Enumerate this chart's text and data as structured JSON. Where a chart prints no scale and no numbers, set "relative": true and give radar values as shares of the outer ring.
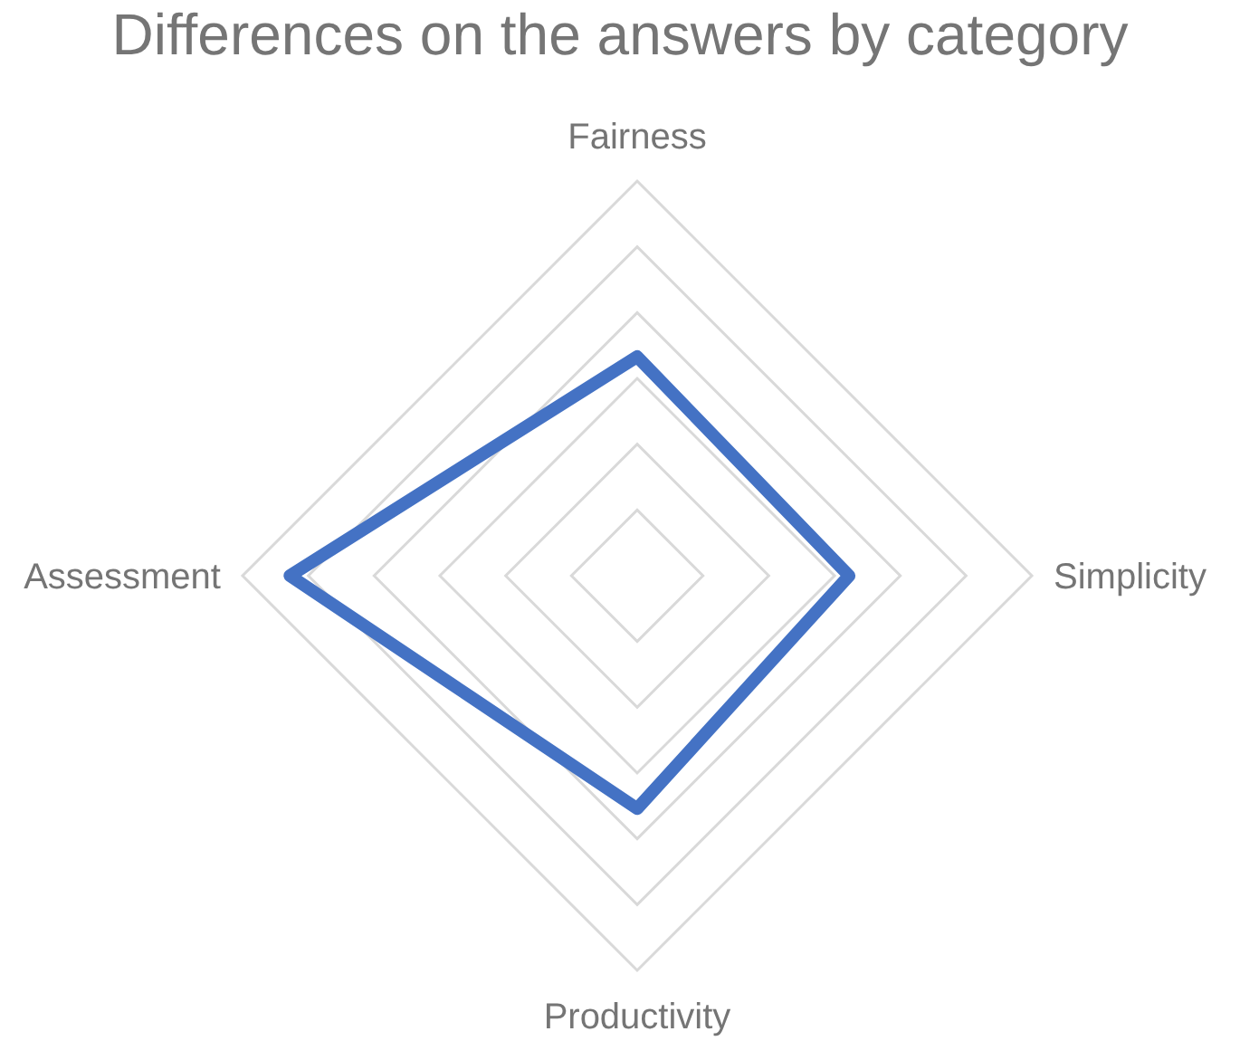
{
  "chart_data": {
    "type": "radar",
    "title": "Differences on the answers by category",
    "categories": [
      "Fairness",
      "Simplicity",
      "Productivity",
      "Assessment"
    ],
    "relative": true,
    "grid": true,
    "series": [
      {
        "color": "#4472c4",
        "values": [
          0.555,
          0.537,
          0.59,
          0.88
        ]
      }
    ]
  }
}
